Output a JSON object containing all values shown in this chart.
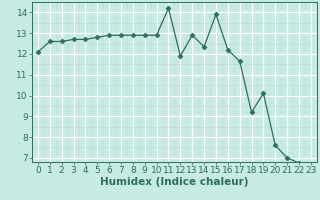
{
  "xlabel": "Humidex (Indice chaleur)",
  "ylabel": "",
  "x_values": [
    0,
    1,
    2,
    3,
    4,
    5,
    6,
    7,
    8,
    9,
    10,
    11,
    12,
    13,
    14,
    15,
    16,
    17,
    18,
    19,
    20,
    21,
    22,
    23
  ],
  "y_values": [
    12.1,
    12.6,
    12.6,
    12.7,
    12.7,
    12.8,
    12.9,
    12.9,
    12.9,
    12.9,
    12.9,
    14.2,
    11.9,
    12.9,
    12.35,
    13.9,
    12.2,
    11.65,
    9.2,
    10.1,
    7.6,
    7.0,
    6.75,
    6.7
  ],
  "line_color": "#2d6e5e",
  "marker": "D",
  "marker_size": 2.5,
  "bg_color": "#c8eae4",
  "grid_major_color": "#ffffff",
  "grid_minor_color": "#b8ddd7",
  "ylim": [
    6.8,
    14.5
  ],
  "xlim": [
    -0.5,
    23.5
  ],
  "yticks": [
    7,
    8,
    9,
    10,
    11,
    12,
    13,
    14
  ],
  "xticks": [
    0,
    1,
    2,
    3,
    4,
    5,
    6,
    7,
    8,
    9,
    10,
    11,
    12,
    13,
    14,
    15,
    16,
    17,
    18,
    19,
    20,
    21,
    22,
    23
  ],
  "tick_fontsize": 6.5,
  "xlabel_fontsize": 7.5
}
